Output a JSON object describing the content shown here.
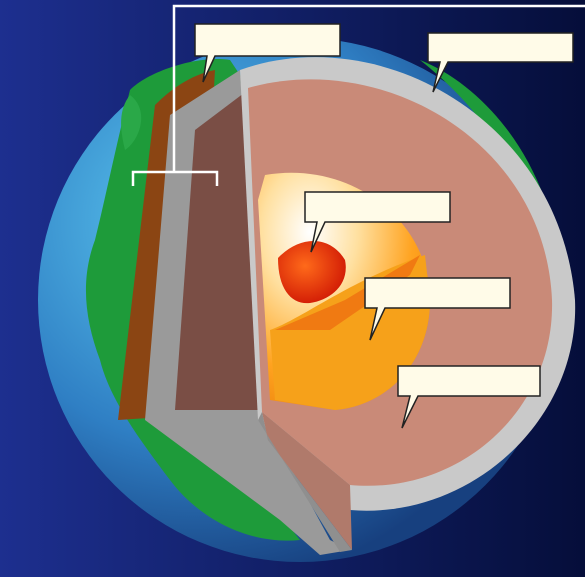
{
  "diagram": {
    "labels": [
      {
        "id": "crust",
        "text": ""
      },
      {
        "id": "mantle",
        "text": ""
      },
      {
        "id": "inner-core",
        "text": ""
      },
      {
        "id": "outer-core",
        "text": ""
      },
      {
        "id": "lower-mantle",
        "text": ""
      }
    ]
  },
  "colors": {
    "space_left": "#1d2f8f",
    "space_right": "#050e3a",
    "ocean": "#3f9fd9",
    "land": "#1e9b3a",
    "crust": "#8b4513",
    "mantle": "#c98a78",
    "outer_core": "#f4a019",
    "inner_core": "#e8380c",
    "shell": "#c8c8c8",
    "label_box": "#fffbe8"
  }
}
